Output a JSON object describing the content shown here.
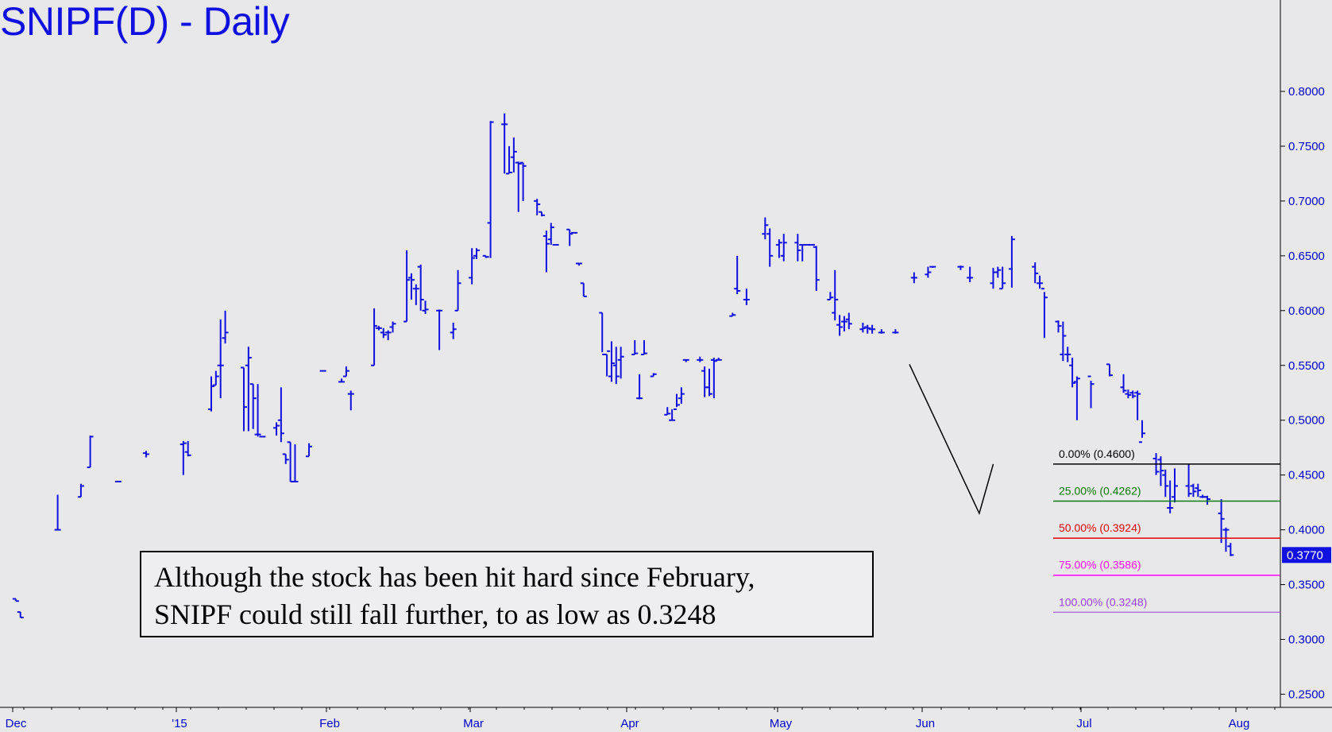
{
  "title": "SNIPF(D) - Daily",
  "annotation": {
    "line1": "Although the stock has been hit hard since February,",
    "line2": "SNIPF could still fall further, to as low as 0.3248"
  },
  "chart_data": {
    "type": "ohlc",
    "title": "SNIPF(D) - Daily",
    "series_color": "#1010e0",
    "ylim": [
      0.24,
      0.87
    ],
    "y_ticks": [
      "0.8000",
      "0.7500",
      "0.7000",
      "0.6500",
      "0.6000",
      "0.5500",
      "0.5000",
      "0.4500",
      "0.4000",
      "0.3500",
      "0.3000",
      "0.2500"
    ],
    "x_ticks": [
      "Dec",
      "'15",
      "Feb",
      "Mar",
      "Apr",
      "May",
      "Jun",
      "Jul",
      "Aug"
    ],
    "last_price": "0.3770",
    "fib_levels": [
      {
        "label": "0.00% (0.4600)",
        "value": 0.46,
        "color": "#000000"
      },
      {
        "label": "25.00% (0.4262)",
        "value": 0.4262,
        "color": "#0a7a0a"
      },
      {
        "label": "50.00% (0.3924)",
        "value": 0.3924,
        "color": "#e00000"
      },
      {
        "label": "75.00% (0.3586)",
        "value": 0.3586,
        "color": "#ff00ff"
      },
      {
        "label": "100.00% (0.3248)",
        "value": 0.3248,
        "color": "#9a40e0"
      }
    ],
    "abc_pattern": [
      {
        "date": "2015-06-11",
        "value": 0.551
      },
      {
        "date": "2015-06-26",
        "value": 0.415
      },
      {
        "date": "2015-06-29",
        "value": 0.46
      }
    ],
    "bars": [
      [
        "2014-12-01",
        0.337,
        0.337,
        0.335,
        0.335
      ],
      [
        "2014-12-02",
        0.325,
        0.325,
        0.32,
        0.32
      ],
      [
        "2014-12-10",
        0.4,
        0.432,
        0.4,
        0.4
      ],
      [
        "2014-12-15",
        0.43,
        0.442,
        0.43,
        0.44
      ],
      [
        "2014-12-17",
        0.457,
        0.486,
        0.457,
        0.485
      ],
      [
        "2014-12-23",
        0.444,
        0.444,
        0.444,
        0.444
      ],
      [
        "2014-12-29",
        0.47,
        0.472,
        0.466,
        0.469
      ],
      [
        "2015-01-06",
        0.478,
        0.481,
        0.45,
        0.479
      ],
      [
        "2015-01-07",
        0.471,
        0.481,
        0.467,
        0.468
      ],
      [
        "2015-01-12",
        0.51,
        0.54,
        0.508,
        0.531
      ],
      [
        "2015-01-13",
        0.532,
        0.545,
        0.532,
        0.54
      ],
      [
        "2015-01-14",
        0.55,
        0.592,
        0.52,
        0.55
      ],
      [
        "2015-01-15",
        0.575,
        0.6,
        0.57,
        0.58
      ],
      [
        "2015-01-19",
        0.548,
        0.548,
        0.49,
        0.512
      ],
      [
        "2015-01-20",
        0.55,
        0.567,
        0.49,
        0.557
      ],
      [
        "2015-01-21",
        0.533,
        0.533,
        0.492,
        0.52
      ],
      [
        "2015-01-22",
        0.487,
        0.533,
        0.485,
        0.487
      ],
      [
        "2015-01-23",
        0.485,
        0.485,
        0.485,
        0.485
      ],
      [
        "2015-01-26",
        0.493,
        0.498,
        0.486,
        0.495
      ],
      [
        "2015-01-27",
        0.5,
        0.53,
        0.48,
        0.488
      ],
      [
        "2015-01-28",
        0.469,
        0.469,
        0.46,
        0.464
      ],
      [
        "2015-01-29",
        0.48,
        0.48,
        0.444,
        0.444
      ],
      [
        "2015-01-30",
        0.444,
        0.478,
        0.444,
        0.444
      ],
      [
        "2015-02-02",
        0.467,
        0.479,
        0.467,
        0.476
      ],
      [
        "2015-02-05",
        0.545,
        0.545,
        0.545,
        0.545
      ],
      [
        "2015-02-09",
        0.535,
        0.538,
        0.535,
        0.535
      ],
      [
        "2015-02-10",
        0.54,
        0.549,
        0.54,
        0.545
      ],
      [
        "2015-02-11",
        0.524,
        0.527,
        0.509,
        0.524
      ],
      [
        "2015-02-16",
        0.55,
        0.602,
        0.55,
        0.586
      ],
      [
        "2015-02-17",
        0.584,
        0.586,
        0.582,
        0.584
      ],
      [
        "2015-02-18",
        0.58,
        0.584,
        0.575,
        0.578
      ],
      [
        "2015-02-19",
        0.58,
        0.582,
        0.573,
        0.58
      ],
      [
        "2015-02-20",
        0.585,
        0.59,
        0.58,
        0.588
      ],
      [
        "2015-02-23",
        0.59,
        0.655,
        0.59,
        0.628
      ],
      [
        "2015-02-24",
        0.63,
        0.634,
        0.61,
        0.628
      ],
      [
        "2015-02-25",
        0.62,
        0.624,
        0.605,
        0.62
      ],
      [
        "2015-02-26",
        0.64,
        0.642,
        0.6,
        0.61
      ],
      [
        "2015-02-27",
        0.6,
        0.609,
        0.597,
        0.601
      ],
      [
        "2015-03-02",
        0.6,
        0.601,
        0.564,
        0.6
      ],
      [
        "2015-03-05",
        0.58,
        0.589,
        0.574,
        0.583
      ],
      [
        "2015-03-06",
        0.6,
        0.637,
        0.6,
        0.625
      ],
      [
        "2015-03-09",
        0.63,
        0.657,
        0.624,
        0.648
      ],
      [
        "2015-03-10",
        0.65,
        0.657,
        0.647,
        0.655
      ],
      [
        "2015-03-12",
        0.65,
        0.65,
        0.648,
        0.649
      ],
      [
        "2015-03-13",
        0.68,
        0.773,
        0.648,
        0.772
      ],
      [
        "2015-03-16",
        0.77,
        0.78,
        0.725,
        0.77
      ],
      [
        "2015-03-17",
        0.725,
        0.75,
        0.725,
        0.726
      ],
      [
        "2015-03-18",
        0.74,
        0.758,
        0.726,
        0.745
      ],
      [
        "2015-03-19",
        0.735,
        0.736,
        0.69,
        0.734
      ],
      [
        "2015-03-20",
        0.735,
        0.735,
        0.7,
        0.732
      ],
      [
        "2015-03-23",
        0.7,
        0.702,
        0.687,
        0.697
      ],
      [
        "2015-03-24",
        0.69,
        0.69,
        0.686,
        0.687
      ],
      [
        "2015-03-25",
        0.668,
        0.673,
        0.635,
        0.661
      ],
      [
        "2015-03-26",
        0.665,
        0.68,
        0.66,
        0.676
      ],
      [
        "2015-03-27",
        0.66,
        0.66,
        0.66,
        0.66
      ],
      [
        "2015-03-30",
        0.674,
        0.674,
        0.659,
        0.67
      ],
      [
        "2015-03-31",
        0.671,
        0.671,
        0.671,
        0.671
      ],
      [
        "2015-04-01",
        0.643,
        0.643,
        0.641,
        0.643
      ],
      [
        "2015-04-02",
        0.625,
        0.625,
        0.613,
        0.613
      ],
      [
        "2015-04-06",
        0.598,
        0.598,
        0.562,
        0.56
      ],
      [
        "2015-04-07",
        0.56,
        0.56,
        0.54,
        0.563
      ],
      [
        "2015-04-08",
        0.54,
        0.572,
        0.535,
        0.552
      ],
      [
        "2015-04-09",
        0.55,
        0.567,
        0.533,
        0.54
      ],
      [
        "2015-04-10",
        0.555,
        0.567,
        0.538,
        0.558
      ],
      [
        "2015-04-13",
        0.56,
        0.573,
        0.56,
        0.561
      ],
      [
        "2015-04-14",
        0.52,
        0.542,
        0.519,
        0.52
      ],
      [
        "2015-04-15",
        0.56,
        0.573,
        0.56,
        0.561
      ],
      [
        "2015-04-17",
        0.54,
        0.543,
        0.54,
        0.542
      ],
      [
        "2015-04-20",
        0.505,
        0.512,
        0.505,
        0.506
      ],
      [
        "2015-04-21",
        0.5,
        0.51,
        0.5,
        0.5
      ],
      [
        "2015-04-22",
        0.51,
        0.524,
        0.512,
        0.514
      ],
      [
        "2015-04-23",
        0.52,
        0.53,
        0.515,
        0.524
      ],
      [
        "2015-04-24",
        0.555,
        0.555,
        0.553,
        0.555
      ],
      [
        "2015-04-27",
        0.555,
        0.558,
        0.553,
        0.555
      ],
      [
        "2015-04-28",
        0.545,
        0.549,
        0.521,
        0.53
      ],
      [
        "2015-04-29",
        0.53,
        0.547,
        0.522,
        0.524
      ],
      [
        "2015-04-30",
        0.555,
        0.557,
        0.52,
        0.554
      ],
      [
        "2015-05-01",
        0.555,
        0.557,
        0.555,
        0.555
      ],
      [
        "2015-05-04",
        0.595,
        0.598,
        0.595,
        0.596
      ],
      [
        "2015-05-05",
        0.62,
        0.65,
        0.615,
        0.618
      ],
      [
        "2015-05-07",
        0.61,
        0.62,
        0.605,
        0.61
      ],
      [
        "2015-05-11",
        0.67,
        0.685,
        0.665,
        0.678
      ],
      [
        "2015-05-12",
        0.67,
        0.675,
        0.64,
        0.65
      ],
      [
        "2015-05-14",
        0.66,
        0.665,
        0.648,
        0.662
      ],
      [
        "2015-05-15",
        0.65,
        0.67,
        0.645,
        0.662
      ],
      [
        "2015-05-18",
        0.662,
        0.67,
        0.645,
        0.655
      ],
      [
        "2015-05-19",
        0.66,
        0.66,
        0.645,
        0.66
      ],
      [
        "2015-05-20",
        0.66,
        0.66,
        0.66,
        0.66
      ],
      [
        "2015-05-21",
        0.66,
        0.66,
        0.66,
        0.66
      ],
      [
        "2015-05-22",
        0.658,
        0.659,
        0.618,
        0.628
      ],
      [
        "2015-05-25",
        0.61,
        0.617,
        0.61,
        0.612
      ],
      [
        "2015-05-26",
        0.598,
        0.637,
        0.591,
        0.61
      ],
      [
        "2015-05-27",
        0.587,
        0.596,
        0.577,
        0.585
      ],
      [
        "2015-05-28",
        0.59,
        0.595,
        0.581,
        0.59
      ],
      [
        "2015-05-29",
        0.592,
        0.598,
        0.583,
        0.588
      ],
      [
        "2015-06-01",
        0.583,
        0.589,
        0.58,
        0.584
      ],
      [
        "2015-06-02",
        0.585,
        0.587,
        0.579,
        0.584
      ],
      [
        "2015-06-03",
        0.583,
        0.587,
        0.579,
        0.583
      ],
      [
        "2015-06-05",
        0.58,
        0.583,
        0.579,
        0.58
      ],
      [
        "2015-06-08",
        0.58,
        0.583,
        0.579,
        0.58
      ],
      [
        "2015-06-12",
        0.63,
        0.635,
        0.625,
        0.63
      ],
      [
        "2015-06-15",
        0.633,
        0.64,
        0.63,
        0.635
      ],
      [
        "2015-06-16",
        0.64,
        0.64,
        0.639,
        0.64
      ],
      [
        "2015-06-22",
        0.64,
        0.641,
        0.637,
        0.64
      ],
      [
        "2015-06-24",
        0.63,
        0.64,
        0.626,
        0.63
      ],
      [
        "2015-06-29",
        0.625,
        0.639,
        0.62,
        0.635
      ],
      [
        "2015-06-30",
        0.635,
        0.64,
        0.63,
        0.637
      ],
      [
        "2015-07-01",
        0.62,
        0.64,
        0.62,
        0.625
      ],
      [
        "2015-07-03",
        0.638,
        0.668,
        0.621,
        0.665
      ],
      [
        "2015-07-08",
        0.64,
        0.644,
        0.625,
        0.634
      ],
      [
        "2015-07-09",
        0.625,
        0.632,
        0.62,
        0.625
      ],
      [
        "2015-07-10",
        0.62,
        0.617,
        0.575,
        0.612
      ],
      [
        "2015-07-13",
        0.59,
        0.591,
        0.58,
        0.586
      ],
      [
        "2015-07-14",
        0.56,
        0.59,
        0.554,
        0.577
      ],
      [
        "2015-07-15",
        0.56,
        0.567,
        0.553,
        0.56
      ],
      [
        "2015-07-16",
        0.55,
        0.557,
        0.53,
        0.534
      ],
      [
        "2015-07-17",
        0.535,
        0.54,
        0.5,
        0.538
      ],
      [
        "2015-07-20",
        0.54,
        0.536,
        0.511,
        0.533
      ],
      [
        "2015-07-24",
        0.551,
        0.551,
        0.54,
        0.541
      ],
      [
        "2015-07-27",
        0.53,
        0.542,
        0.525,
        0.527
      ],
      [
        "2015-07-28",
        0.524,
        0.528,
        0.52,
        0.523
      ],
      [
        "2015-07-29",
        0.525,
        0.527,
        0.52,
        0.522
      ],
      [
        "2015-07-30",
        0.525,
        0.527,
        0.5,
        0.524
      ],
      [
        "2015-07-31",
        0.48,
        0.5,
        0.484,
        0.488
      ],
      [
        "2015-08-03",
        0.465,
        0.47,
        0.45,
        0.453
      ],
      [
        "2015-08-04",
        0.464,
        0.467,
        0.44,
        0.454
      ],
      [
        "2015-08-05",
        0.45,
        0.455,
        0.43,
        0.44
      ],
      [
        "2015-08-06",
        0.42,
        0.445,
        0.415,
        0.42
      ],
      [
        "2015-08-07",
        0.43,
        0.456,
        0.425,
        0.44
      ],
      [
        "2015-08-10",
        0.44,
        0.46,
        0.43,
        0.433
      ],
      [
        "2015-08-11",
        0.44,
        0.442,
        0.43,
        0.435
      ],
      [
        "2015-08-12",
        0.438,
        0.442,
        0.43,
        0.436
      ],
      [
        "2015-08-13",
        0.43,
        0.432,
        0.429,
        0.43
      ],
      [
        "2015-08-14",
        0.43,
        0.431,
        0.423,
        0.428
      ],
      [
        "2015-08-17",
        0.415,
        0.428,
        0.388,
        0.41
      ],
      [
        "2015-08-18",
        0.4,
        0.402,
        0.38,
        0.4
      ],
      [
        "2015-08-19",
        0.385,
        0.388,
        0.376,
        0.377
      ]
    ]
  }
}
